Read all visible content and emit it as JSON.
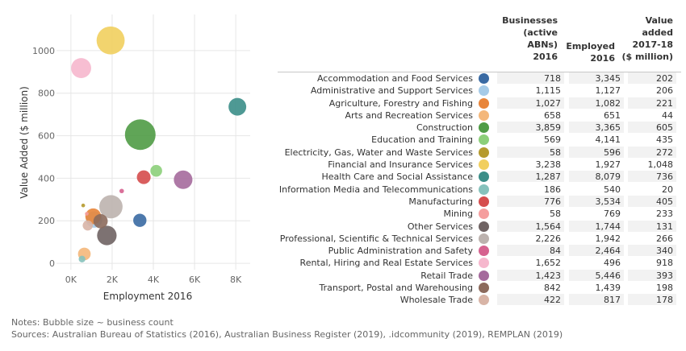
{
  "chart_data": {
    "type": "scatter",
    "xlabel": "Employment 2016",
    "ylabel": "Value Added ($ million)",
    "xlim": [
      -700,
      8700
    ],
    "ylim": [
      -30,
      1170
    ],
    "xticks": [
      0,
      2000,
      4000,
      6000,
      8000
    ],
    "xtick_labels": [
      "0K",
      "2K",
      "4K",
      "6K",
      "8K"
    ],
    "yticks": [
      0,
      200,
      400,
      600,
      800,
      1000
    ],
    "ytick_labels": [
      "0",
      "200",
      "400",
      "600",
      "800",
      "1000"
    ],
    "grid": true,
    "bubble_size": "businesses",
    "points": [
      {
        "industry": "Accommodation and Food Services",
        "businesses": 718,
        "employed": 3345,
        "value_added": 202,
        "color": "#3a6aa3"
      },
      {
        "industry": "Administrative and Support Services",
        "businesses": 1115,
        "employed": 1127,
        "value_added": 206,
        "color": "#a6cbe8"
      },
      {
        "industry": "Agriculture, Forestry and Fishing",
        "businesses": 1027,
        "employed": 1082,
        "value_added": 221,
        "color": "#e8853a"
      },
      {
        "industry": "Arts and Recreation Services",
        "businesses": 658,
        "employed": 651,
        "value_added": 44,
        "color": "#f4b77a"
      },
      {
        "industry": "Construction",
        "businesses": 3859,
        "employed": 3365,
        "value_added": 605,
        "color": "#4f9b45"
      },
      {
        "industry": "Education and Training",
        "businesses": 569,
        "employed": 4141,
        "value_added": 435,
        "color": "#8ccf7a"
      },
      {
        "industry": "Electricity, Gas, Water and Waste Services",
        "businesses": 58,
        "employed": 596,
        "value_added": 272,
        "color": "#b59a2e"
      },
      {
        "industry": "Financial and Insurance Services",
        "businesses": 3238,
        "employed": 1927,
        "value_added": 1048,
        "color": "#f1cf5e"
      },
      {
        "industry": "Health Care and Social Assistance",
        "businesses": 1287,
        "employed": 8079,
        "value_added": 736,
        "color": "#3b8e88"
      },
      {
        "industry": "Information Media and Telecommunications",
        "businesses": 186,
        "employed": 540,
        "value_added": 20,
        "color": "#86c2bc"
      },
      {
        "industry": "Manufacturing",
        "businesses": 776,
        "employed": 3534,
        "value_added": 405,
        "color": "#d54d4d"
      },
      {
        "industry": "Mining",
        "businesses": 58,
        "employed": 769,
        "value_added": 233,
        "color": "#f59e9e"
      },
      {
        "industry": "Other Services",
        "businesses": 1564,
        "employed": 1744,
        "value_added": 131,
        "color": "#6f6363"
      },
      {
        "industry": "Professional, Scientific & Technical Services",
        "businesses": 2226,
        "employed": 1942,
        "value_added": 266,
        "color": "#bcb2ae"
      },
      {
        "industry": "Public Administration and Safety",
        "businesses": 84,
        "employed": 2464,
        "value_added": 340,
        "color": "#d6628f"
      },
      {
        "industry": "Rental, Hiring and Real Estate Services",
        "businesses": 1652,
        "employed": 496,
        "value_added": 918,
        "color": "#f6b7cd"
      },
      {
        "industry": "Retail Trade",
        "businesses": 1423,
        "employed": 5446,
        "value_added": 393,
        "color": "#a56a9c"
      },
      {
        "industry": "Transport, Postal and Warehousing",
        "businesses": 842,
        "employed": 1439,
        "value_added": 198,
        "color": "#8c6a5c"
      },
      {
        "industry": "Wholesale Trade",
        "businesses": 422,
        "employed": 817,
        "value_added": 178,
        "color": "#d8b4a6"
      }
    ]
  },
  "table": {
    "header_businesses": "Businesses\n(active\nABNs)\n2016",
    "header_employed": "Employed\n2016",
    "header_value": "Value\nadded\n2017-18\n($ million)",
    "rows": [
      {
        "industry": "Accommodation and Food Services",
        "businesses": "718",
        "employed": "3,345",
        "value": "202"
      },
      {
        "industry": "Administrative and Support Services",
        "businesses": "1,115",
        "employed": "1,127",
        "value": "206"
      },
      {
        "industry": "Agriculture, Forestry and Fishing",
        "businesses": "1,027",
        "employed": "1,082",
        "value": "221"
      },
      {
        "industry": "Arts and Recreation Services",
        "businesses": "658",
        "employed": "651",
        "value": "44"
      },
      {
        "industry": "Construction",
        "businesses": "3,859",
        "employed": "3,365",
        "value": "605"
      },
      {
        "industry": "Education and Training",
        "businesses": "569",
        "employed": "4,141",
        "value": "435"
      },
      {
        "industry": "Electricity, Gas, Water and Waste Services",
        "businesses": "58",
        "employed": "596",
        "value": "272"
      },
      {
        "industry": "Financial and Insurance Services",
        "businesses": "3,238",
        "employed": "1,927",
        "value": "1,048"
      },
      {
        "industry": "Health Care and Social Assistance",
        "businesses": "1,287",
        "employed": "8,079",
        "value": "736"
      },
      {
        "industry": "Information Media and Telecommunications",
        "businesses": "186",
        "employed": "540",
        "value": "20"
      },
      {
        "industry": "Manufacturing",
        "businesses": "776",
        "employed": "3,534",
        "value": "405"
      },
      {
        "industry": "Mining",
        "businesses": "58",
        "employed": "769",
        "value": "233"
      },
      {
        "industry": "Other Services",
        "businesses": "1,564",
        "employed": "1,744",
        "value": "131"
      },
      {
        "industry": "Professional, Scientific & Technical Services",
        "businesses": "2,226",
        "employed": "1,942",
        "value": "266"
      },
      {
        "industry": "Public Administration and Safety",
        "businesses": "84",
        "employed": "2,464",
        "value": "340"
      },
      {
        "industry": "Rental, Hiring and Real Estate Services",
        "businesses": "1,652",
        "employed": "496",
        "value": "918"
      },
      {
        "industry": "Retail Trade",
        "businesses": "1,423",
        "employed": "5,446",
        "value": "393"
      },
      {
        "industry": "Transport, Postal and Warehousing",
        "businesses": "842",
        "employed": "1,439",
        "value": "198"
      },
      {
        "industry": "Wholesale Trade",
        "businesses": "422",
        "employed": "817",
        "value": "178"
      }
    ]
  },
  "notes": {
    "line1": "Notes: Bubble size ~ business count",
    "line2": "Sources: Australian Bureau of Statistics (2016), Australian Business Register (2019), .idcommunity (2019), REMPLAN (2019)"
  }
}
